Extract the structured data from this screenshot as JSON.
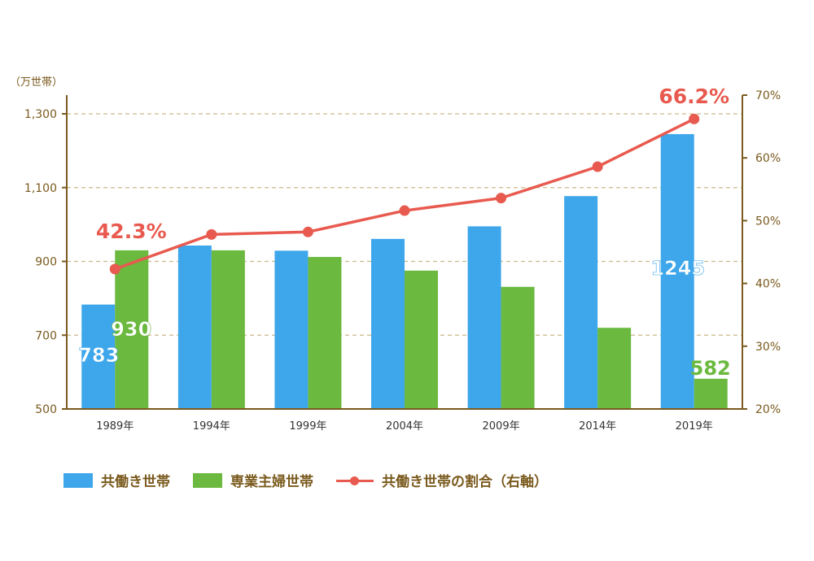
{
  "chart_data": {
    "type": "bar",
    "categories": [
      "1989年",
      "1994年",
      "1999年",
      "2004年",
      "2009年",
      "2014年",
      "2019年"
    ],
    "series": [
      {
        "name": "共働き世帯",
        "type": "bar",
        "axis": "left",
        "color": "#3ea6ea",
        "values": [
          783,
          943,
          929,
          961,
          995,
          1077,
          1245
        ]
      },
      {
        "name": "専業主婦世帯",
        "type": "bar",
        "axis": "left",
        "color": "#6bb93f",
        "values": [
          930,
          930,
          912,
          875,
          831,
          720,
          582
        ]
      },
      {
        "name": "共働き世帯の割合（右軸）",
        "type": "line",
        "axis": "right",
        "color": "#e85a4f",
        "values": [
          42.3,
          47.8,
          48.2,
          51.6,
          53.6,
          58.6,
          66.2
        ]
      }
    ],
    "y_left": {
      "label": "（万世帯）",
      "min": 500,
      "max": 1300,
      "ticks": [
        "500",
        "700",
        "900",
        "1,100",
        "1,300"
      ]
    },
    "y_right": {
      "min": 20,
      "max": 70,
      "ticks": [
        "20%",
        "30%",
        "40%",
        "50%",
        "60%",
        "70%"
      ]
    },
    "annotations": {
      "bar_first_blue": "783",
      "bar_first_green": "930",
      "bar_last_blue": "1245",
      "bar_last_green": "582",
      "pct_first": "42.3%",
      "pct_last": "66.2%"
    },
    "grid": "dashed horizontal",
    "legend_position": "bottom-left"
  },
  "colors": {
    "axis": "#7a5a1e",
    "grid": "#c9b98a",
    "blue": "#3ea6ea",
    "green": "#6bb93f",
    "red": "#e85a4f"
  }
}
